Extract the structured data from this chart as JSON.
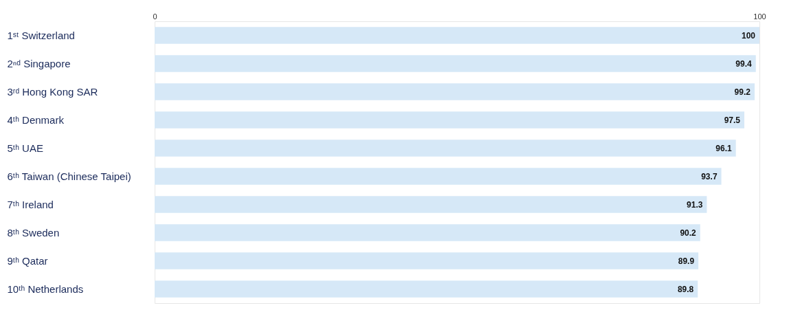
{
  "chart_data": {
    "type": "bar",
    "orientation": "horizontal",
    "categories": [
      "1ˢᵗ Switzerland",
      "2ⁿᵈ Singapore",
      "3ʳᵈ Hong Kong SAR",
      "4ᵗʰ Denmark",
      "5ᵗʰ UAE",
      "6ᵗʰ Taiwan (Chinese Taipei)",
      "7ᵗʰ Ireland",
      "8ᵗʰ Sweden",
      "9ᵗʰ Qatar",
      "10ᵗʰ Netherlands"
    ],
    "values": [
      100,
      99.4,
      99.2,
      97.5,
      96.1,
      93.7,
      91.3,
      90.2,
      89.9,
      89.8
    ],
    "color": "#d6e8f7",
    "xlim": [
      0,
      100
    ],
    "xticks": [
      0,
      100
    ],
    "data_labels": true
  }
}
